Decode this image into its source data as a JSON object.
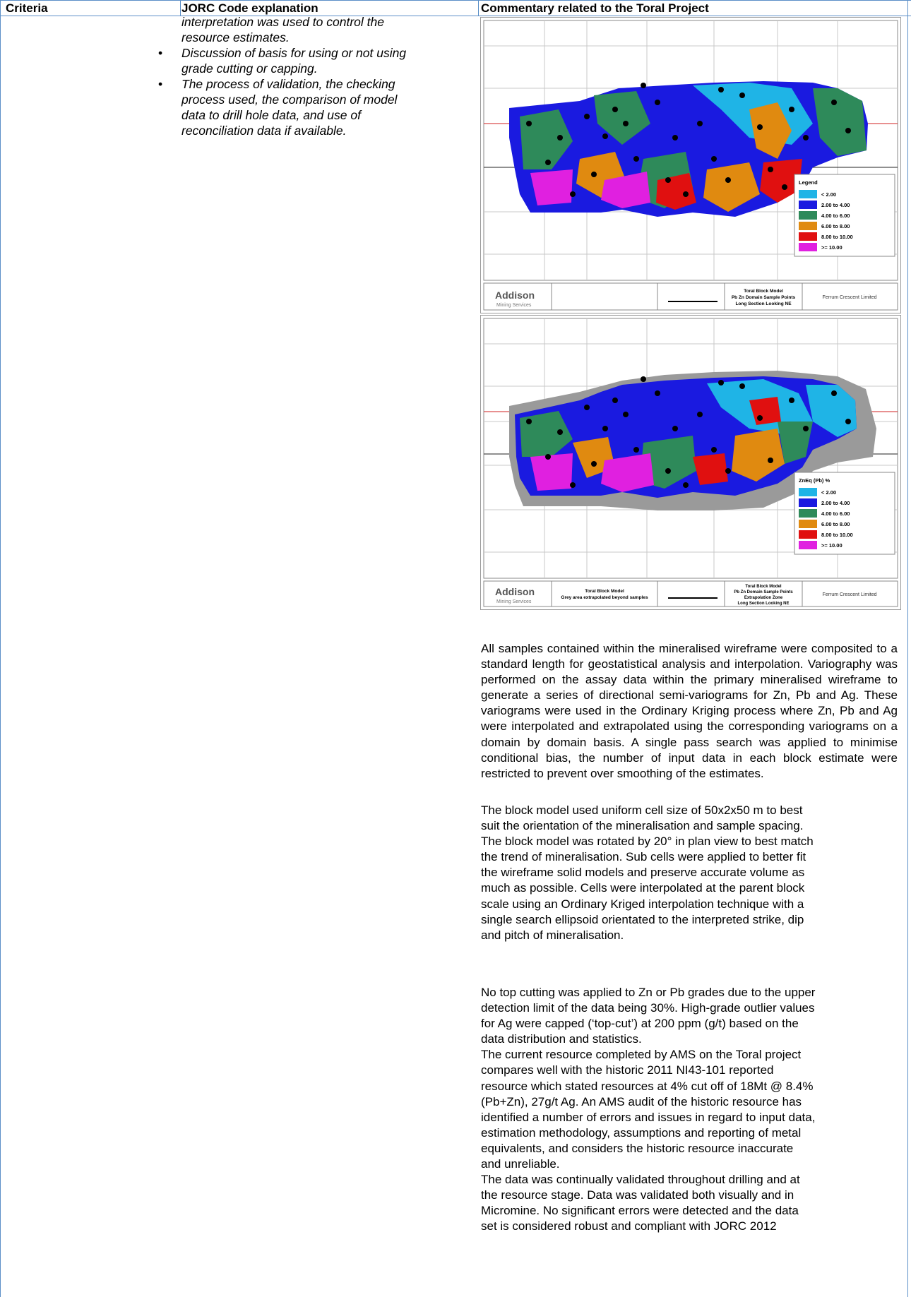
{
  "header": {
    "criteria": "Criteria",
    "jorc": "JORC Code explanation",
    "commentary": "Commentary related to the Toral Project"
  },
  "jorc_text": {
    "lead_line1": "interpretation was used to control the",
    "lead_line2": "resource estimates.",
    "bullets": [
      [
        "Discussion of basis for using or not using",
        "grade cutting or capping."
      ],
      [
        "The process of validation, the checking",
        "process used, the comparison of model",
        "data to drill hole data, and use of",
        "reconciliation data if available."
      ]
    ]
  },
  "figure1": {
    "legend_title": "Legend",
    "legend": [
      "< 2.00",
      "2.00 to 4.00",
      "4.00 to 6.00",
      "6.00 to 8.00",
      "8.00 to 10.00",
      ">= 10.00"
    ],
    "company": "Addison",
    "company_sub": "Mining Services",
    "title_block": [
      "Toral Block Model",
      "Pb Zn Domain Sample Points",
      "Long Section Looking NE"
    ],
    "client": "Ferrum Crescent Limited"
  },
  "figure2": {
    "legend_title": "ZnEq (Pb) %",
    "legend": [
      "< 2.00",
      "2.00 to 4.00",
      "4.00 to 6.00",
      "6.00 to 8.00",
      "8.00 to 10.00",
      ">= 10.00"
    ],
    "company": "Addison",
    "company_sub": "Mining Services",
    "subtitle": [
      "Toral Block Model",
      "Grey area extrapolated beyond samples"
    ],
    "title_block": [
      "Toral Block Model",
      "Pb Zn Domain Sample Points",
      "Extrapolation Zone",
      "Long Section Looking NE"
    ],
    "client": "Ferrum Crescent Limited"
  },
  "legend_colors": [
    "#1fb4e6",
    "#1a1ae0",
    "#2e8a5a",
    "#e08a10",
    "#e01010",
    "#e020e0"
  ],
  "commentary": {
    "p1": "All samples contained within the mineralised wireframe were composited to a standard length for geostatistical analysis and interpolation. Variography was performed on the assay data within the primary mineralised wireframe to generate a series of directional semi-variograms for Zn, Pb and Ag. These variograms were used in the Ordinary Kriging process where Zn, Pb and Ag were interpolated and extrapolated using the corresponding variograms on a domain by domain basis. A single pass search was applied to minimise conditional bias, the number of input data in each block estimate were restricted to prevent over smoothing of the estimates.",
    "p2_lines": [
      "The block model used uniform cell size of 50x2x50 m to best",
      "suit the orientation of the mineralisation and sample spacing.",
      "The block model was rotated by 20° in plan view to best match",
      "the trend of mineralisation. Sub cells were applied to better fit",
      "the wireframe solid models and preserve accurate volume as",
      "much as possible. Cells were interpolated at the parent block",
      "scale using an Ordinary Kriged interpolation technique with a",
      "single search ellipsoid orientated to the interpreted strike, dip",
      "and pitch of mineralisation."
    ],
    "p3_lines": [
      "No top cutting was applied to Zn or Pb grades due to the upper",
      "detection limit of the data being 30%. High-grade outlier values",
      "for Ag were capped (‘top-cut’) at 200 ppm (g/t) based on the",
      "data distribution and statistics.",
      "The current resource completed by AMS on the Toral project",
      "compares well with the historic 2011 NI43-101 reported",
      "resource which stated resources at 4% cut off of 18Mt @ 8.4%",
      "(Pb+Zn), 27g/t Ag.  An AMS audit of the historic resource has",
      "identified a number of errors and issues in regard to input data,",
      "estimation methodology, assumptions and reporting of metal",
      "equivalents, and considers the historic resource inaccurate",
      "and unreliable.",
      "The data was continually validated throughout drilling and at",
      "the resource stage. Data was validated both visually and in",
      "Micromine. No significant errors were detected and the data",
      "set is considered robust and compliant with JORC 2012"
    ]
  }
}
